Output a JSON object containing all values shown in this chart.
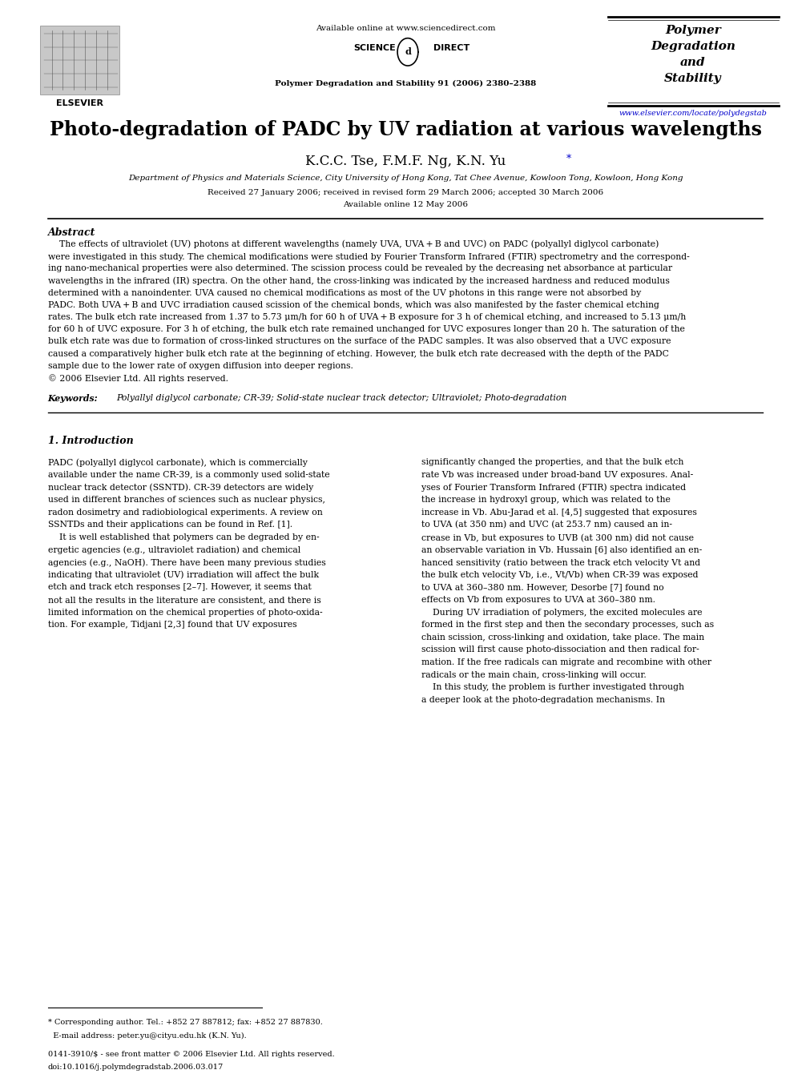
{
  "title": "Photo-degradation of PADC by UV radiation at various wavelengths",
  "authors_plain": "K.C.C. Tse, F.M.F. Ng, K.N. Yu",
  "affiliation": "Department of Physics and Materials Science, City University of Hong Kong, Tat Chee Avenue, Kowloon Tong, Kowloon, Hong Kong",
  "dates": "Received 27 January 2006; received in revised form 29 March 2006; accepted 30 March 2006",
  "available": "Available online 12 May 2006",
  "journal_top": "Available online at www.sciencedirect.com",
  "journal_name": "Polymer Degradation and Stability 91 (2006) 2380–2388",
  "journal_url": "www.elsevier.com/locate/polydegstab",
  "elsevier_text": "ELSEVIER",
  "abstract_title": "Abstract",
  "keywords_label": "Keywords:",
  "keywords_text": "Polyallyl diglycol carbonate; CR-39; Solid-state nuclear track detector; Ultraviolet; Photo-degradation",
  "section1_title": "1. Introduction",
  "footnote_left1": "* Corresponding author. Tel.: +852 27 887812; fax: +852 27 887830.",
  "footnote_left2": "  E-mail address: peter.yu@cityu.edu.hk (K.N. Yu).",
  "footnote_bottom1": "0141-3910/$ - see front matter © 2006 Elsevier Ltd. All rights reserved.",
  "footnote_bottom2": "doi:10.1016/j.polymdegradstab.2006.03.017",
  "background_color": "#ffffff",
  "text_color": "#000000",
  "link_color": "#0000cc"
}
